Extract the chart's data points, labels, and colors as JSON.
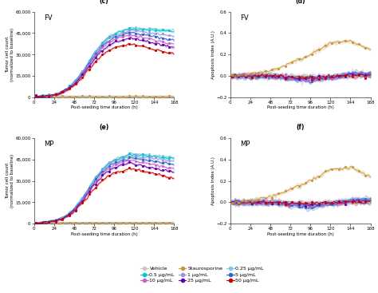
{
  "title_c": "FV",
  "title_d": "FV",
  "title_e": "MP",
  "title_f": "MP",
  "label_c": "(c)",
  "label_d": "(d)",
  "label_e": "(e)",
  "label_f": "(f)",
  "xlabel": "Post-seeding time duration (h)",
  "ylabel_left": "Tumor cell count\n(normalized to baseline)",
  "ylabel_right": "Apoptosis Index (A.U.)",
  "x_ticks": [
    0,
    24,
    48,
    72,
    96,
    120,
    144,
    168
  ],
  "ylim_left": [
    0,
    60000
  ],
  "ylim_right": [
    -0.2,
    0.6
  ],
  "yticks_left": [
    0,
    15000,
    30000,
    45000,
    60000
  ],
  "yticks_right": [
    -0.2,
    0.0,
    0.2,
    0.4,
    0.6
  ],
  "colors": {
    "Vehicle": "#c8c8c8",
    "Staurosporine": "#c8963c",
    "0.25": "#82c8e6",
    "0.5": "#00c8c8",
    "1": "#9696e6",
    "5": "#3264c8",
    "10": "#c864c8",
    "25": "#6400aa",
    "50": "#c80000"
  },
  "background": "#ffffff"
}
